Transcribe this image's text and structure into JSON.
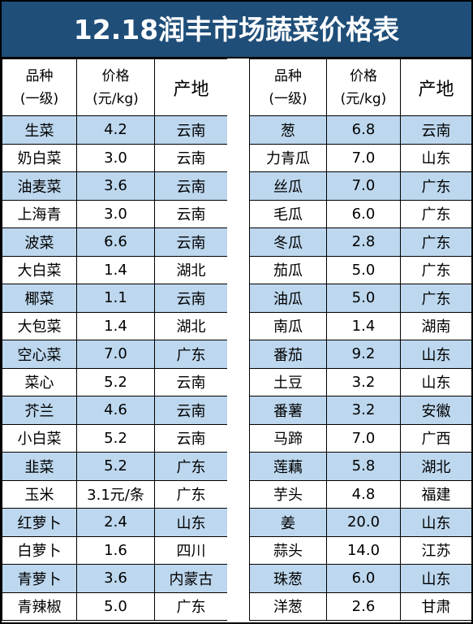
{
  "title": "12.18润丰市场蔬菜价格表",
  "colors": {
    "title_bg": "#1f4e79",
    "title_text": "#ffffff",
    "row_alt": "#bdd7ee"
  },
  "header": {
    "variety_line1": "品种",
    "variety_line2": "(一级)",
    "price_line1": "价格",
    "price_line2": "(元/kg)",
    "origin": "产地"
  },
  "left": [
    {
      "name": "生菜",
      "price": "4.2",
      "origin": "云南"
    },
    {
      "name": "奶白菜",
      "price": "3.0",
      "origin": "云南"
    },
    {
      "name": "油麦菜",
      "price": "3.6",
      "origin": "云南"
    },
    {
      "name": "上海青",
      "price": "3.0",
      "origin": "云南"
    },
    {
      "name": "波菜",
      "price": "6.6",
      "origin": "云南"
    },
    {
      "name": "大白菜",
      "price": "1.4",
      "origin": "湖北"
    },
    {
      "name": "椰菜",
      "price": "1.1",
      "origin": "云南"
    },
    {
      "name": "大包菜",
      "price": "1.4",
      "origin": "湖北"
    },
    {
      "name": "空心菜",
      "price": "7.0",
      "origin": "广东"
    },
    {
      "name": "菜心",
      "price": "5.2",
      "origin": "云南"
    },
    {
      "name": "芥兰",
      "price": "4.6",
      "origin": "云南"
    },
    {
      "name": "小白菜",
      "price": "5.2",
      "origin": "云南"
    },
    {
      "name": "韭菜",
      "price": "5.2",
      "origin": "广东"
    },
    {
      "name": "玉米",
      "price": "3.1元/条",
      "origin": "广东"
    },
    {
      "name": "红萝卜",
      "price": "2.4",
      "origin": "山东"
    },
    {
      "name": "白萝卜",
      "price": "1.6",
      "origin": "四川"
    },
    {
      "name": "青萝卜",
      "price": "3.6",
      "origin": "内蒙古"
    },
    {
      "name": "青辣椒",
      "price": "5.0",
      "origin": "广东"
    }
  ],
  "right": [
    {
      "name": "葱",
      "price": "6.8",
      "origin": "云南"
    },
    {
      "name": "力青瓜",
      "price": "7.0",
      "origin": "山东"
    },
    {
      "name": "丝瓜",
      "price": "7.0",
      "origin": "广东"
    },
    {
      "name": "毛瓜",
      "price": "6.0",
      "origin": "广东"
    },
    {
      "name": "冬瓜",
      "price": "2.8",
      "origin": "广东"
    },
    {
      "name": "茄瓜",
      "price": "5.0",
      "origin": "广东"
    },
    {
      "name": "油瓜",
      "price": "5.0",
      "origin": "广东"
    },
    {
      "name": "南瓜",
      "price": "1.4",
      "origin": "湖南"
    },
    {
      "name": "番茄",
      "price": "9.2",
      "origin": "山东"
    },
    {
      "name": "土豆",
      "price": "3.2",
      "origin": "山东"
    },
    {
      "name": "番薯",
      "price": "3.2",
      "origin": "安徽"
    },
    {
      "name": "马蹄",
      "price": "7.0",
      "origin": "广西"
    },
    {
      "name": "莲藕",
      "price": "5.8",
      "origin": "湖北"
    },
    {
      "name": "芋头",
      "price": "4.8",
      "origin": "福建"
    },
    {
      "name": "姜",
      "price": "20.0",
      "origin": "山东"
    },
    {
      "name": "蒜头",
      "price": "14.0",
      "origin": "江苏"
    },
    {
      "name": "珠葱",
      "price": "6.0",
      "origin": "山东"
    },
    {
      "name": "洋葱",
      "price": "2.6",
      "origin": "甘肃"
    }
  ]
}
